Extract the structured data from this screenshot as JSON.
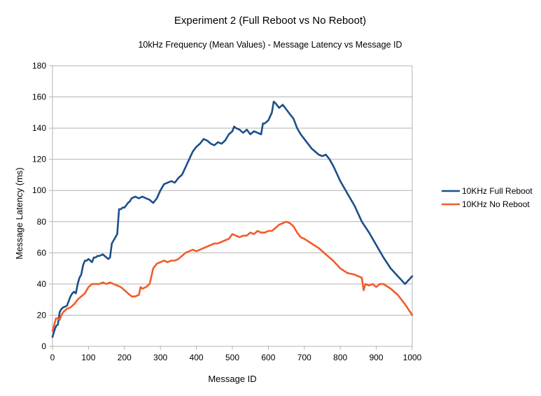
{
  "chart_data": {
    "type": "line",
    "title": "Experiment 2 (Full Reboot vs No Reboot)",
    "subtitle": "10kHz Frequency (Mean Values) - Message Latency vs Message ID",
    "xlabel": "Message ID",
    "ylabel": "Message Latency (ms)",
    "xlim": [
      0,
      1000
    ],
    "ylim": [
      0,
      180
    ],
    "x_ticks": [
      "0",
      "100",
      "200",
      "300",
      "400",
      "500",
      "600",
      "700",
      "800",
      "900",
      "1000"
    ],
    "y_ticks": [
      "0",
      "20",
      "40",
      "60",
      "80",
      "100",
      "120",
      "140",
      "160",
      "180"
    ],
    "grid": "horizontal",
    "legend_position": "right",
    "series": [
      {
        "name": "10KHz Full Reboot",
        "color": "#1b4f8a",
        "x": [
          0,
          5,
          10,
          15,
          20,
          25,
          30,
          40,
          50,
          55,
          60,
          65,
          70,
          75,
          80,
          85,
          90,
          95,
          100,
          110,
          115,
          120,
          125,
          130,
          140,
          150,
          155,
          160,
          165,
          170,
          175,
          180,
          185,
          190,
          195,
          200,
          210,
          215,
          220,
          230,
          240,
          250,
          260,
          270,
          280,
          290,
          300,
          310,
          320,
          330,
          340,
          350,
          360,
          370,
          380,
          390,
          400,
          410,
          420,
          430,
          440,
          450,
          460,
          470,
          480,
          490,
          500,
          505,
          510,
          520,
          530,
          540,
          550,
          560,
          570,
          580,
          585,
          590,
          600,
          610,
          615,
          620,
          630,
          640,
          650,
          660,
          670,
          680,
          690,
          700,
          720,
          740,
          750,
          760,
          770,
          780,
          790,
          800,
          820,
          840,
          860,
          880,
          900,
          920,
          940,
          960,
          980,
          1000
        ],
        "values": [
          6,
          10,
          13,
          14,
          22,
          24,
          25,
          26,
          32,
          34,
          35,
          34,
          40,
          44,
          46,
          52,
          55,
          55,
          56,
          54,
          57,
          57,
          58,
          58,
          59,
          57,
          56,
          57,
          66,
          68,
          70,
          72,
          88,
          88,
          89,
          89,
          92,
          93,
          95,
          96,
          95,
          96,
          95,
          94,
          92,
          95,
          100,
          104,
          105,
          106,
          105,
          108,
          110,
          115,
          120,
          125,
          128,
          130,
          133,
          132,
          130,
          129,
          131,
          130,
          132,
          136,
          138,
          141,
          140,
          139,
          137,
          139,
          136,
          138,
          137,
          136,
          143,
          143,
          145,
          150,
          157,
          156,
          153,
          155,
          152,
          149,
          146,
          140,
          136,
          133,
          127,
          123,
          122,
          123,
          120,
          116,
          111,
          106,
          98,
          90,
          80,
          73,
          65,
          57,
          50,
          45,
          40,
          45
        ]
      },
      {
        "name": "10KHz No Reboot",
        "color": "#f25c2a",
        "x": [
          0,
          5,
          10,
          15,
          20,
          25,
          30,
          40,
          50,
          60,
          70,
          80,
          90,
          100,
          110,
          120,
          130,
          140,
          150,
          160,
          170,
          180,
          190,
          200,
          210,
          220,
          230,
          240,
          245,
          250,
          260,
          270,
          280,
          290,
          300,
          310,
          320,
          330,
          340,
          350,
          360,
          370,
          380,
          390,
          400,
          410,
          420,
          430,
          440,
          450,
          460,
          470,
          480,
          490,
          500,
          510,
          520,
          530,
          540,
          550,
          560,
          570,
          580,
          590,
          600,
          610,
          620,
          630,
          640,
          650,
          660,
          670,
          680,
          690,
          700,
          720,
          740,
          760,
          780,
          800,
          820,
          840,
          860,
          865,
          870,
          880,
          890,
          900,
          910,
          920,
          940,
          960,
          980,
          1000
        ],
        "values": [
          10,
          14,
          18,
          18,
          17,
          20,
          22,
          24,
          25,
          27,
          30,
          32,
          34,
          38,
          40,
          40,
          40,
          41,
          40,
          41,
          40,
          39,
          38,
          36,
          34,
          32,
          32,
          33,
          38,
          37,
          38,
          40,
          50,
          53,
          54,
          55,
          54,
          55,
          55,
          56,
          58,
          60,
          61,
          62,
          61,
          62,
          63,
          64,
          65,
          66,
          66,
          67,
          68,
          69,
          72,
          71,
          70,
          71,
          71,
          73,
          72,
          74,
          73,
          73,
          74,
          74,
          76,
          78,
          79,
          80,
          79,
          77,
          73,
          70,
          69,
          66,
          63,
          59,
          55,
          50,
          47,
          46,
          44,
          36,
          40,
          39,
          40,
          38,
          40,
          40,
          37,
          33,
          27,
          20
        ]
      }
    ]
  }
}
